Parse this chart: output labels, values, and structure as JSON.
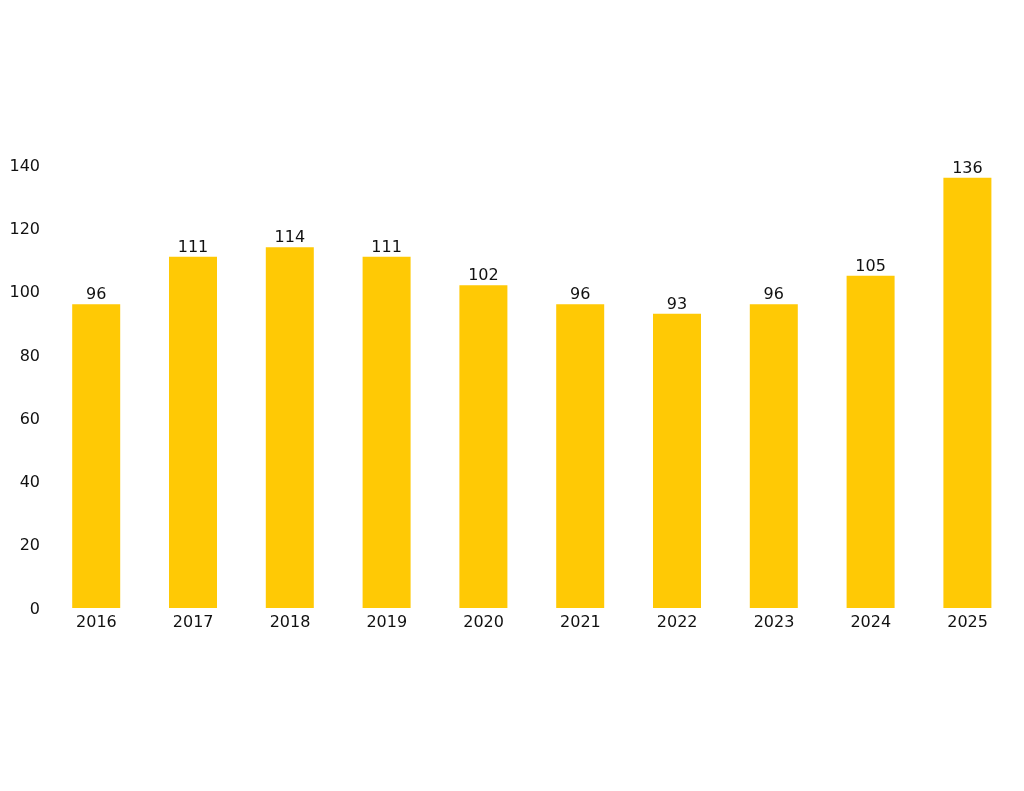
{
  "chart_data": {
    "type": "bar",
    "categories": [
      "2016",
      "2017",
      "2018",
      "2019",
      "2020",
      "2021",
      "2022",
      "2023",
      "2024",
      "2025"
    ],
    "values": [
      96,
      111,
      114,
      111,
      102,
      96,
      93,
      96,
      105,
      136
    ],
    "color": "#ffc905",
    "ylim": [
      0,
      140
    ],
    "yticks": [
      0,
      20,
      40,
      60,
      80,
      100,
      120,
      140
    ],
    "data_labels": true
  }
}
